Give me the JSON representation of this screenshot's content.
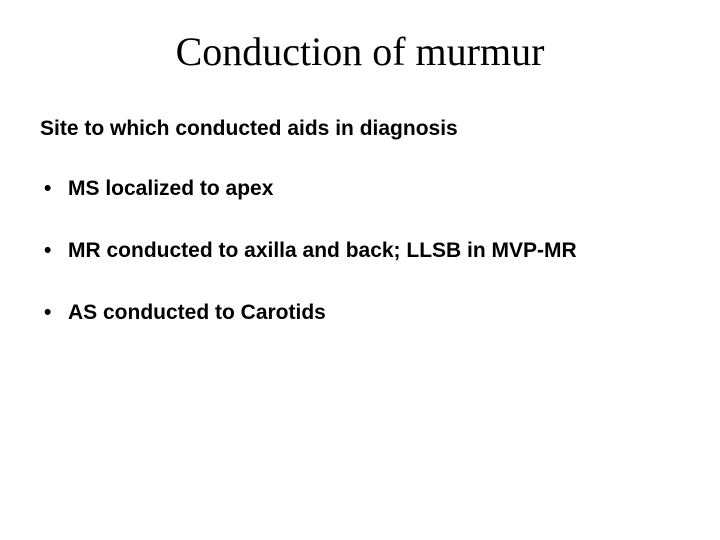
{
  "slide": {
    "title": "Conduction of murmur",
    "subtitle": "Site to which conducted aids in diagnosis",
    "bullets": [
      {
        "text": "MS localized to apex"
      },
      {
        "text": "MR conducted to axilla and back; LLSB in MVP-MR"
      },
      {
        "text": "AS conducted to Carotids"
      }
    ],
    "style": {
      "background_color": "#ffffff",
      "text_color": "#000000",
      "title_font": "Times New Roman",
      "title_fontsize": 40,
      "title_fontweight": 400,
      "body_font": "Arial",
      "body_fontsize": 21,
      "body_fontweight": 700,
      "bullet_marker": "•"
    }
  }
}
